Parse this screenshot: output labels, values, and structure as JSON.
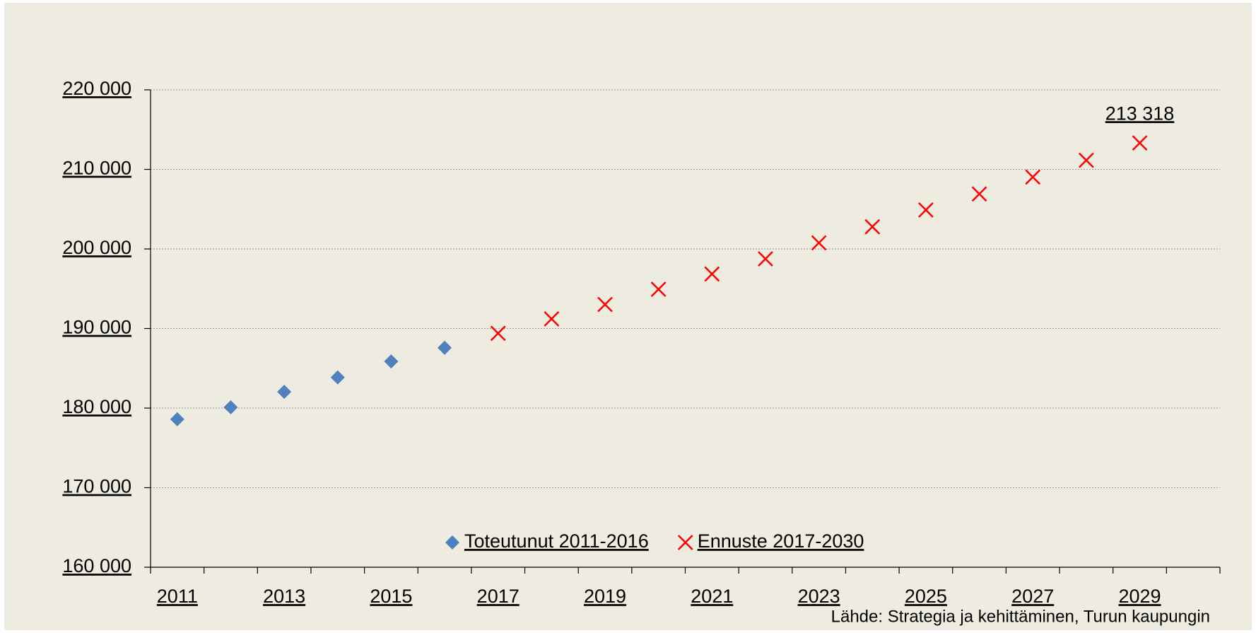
{
  "chart_data": {
    "type": "scatter",
    "categories": [
      "2011",
      null,
      "2013",
      null,
      "2015",
      null,
      "2017",
      null,
      "2019",
      null,
      "2021",
      null,
      "2023",
      null,
      "2025",
      null,
      "2027",
      null,
      "2029",
      null
    ],
    "series": [
      {
        "name": "Toteutunut 2011-2016",
        "color": "#4f81bd",
        "marker": "diamond",
        "values": [
          178600,
          180100,
          182050,
          183860,
          185870,
          187580,
          null,
          null,
          null,
          null,
          null,
          null,
          null,
          null,
          null,
          null,
          null,
          null,
          null,
          null
        ]
      },
      {
        "name": "Ennuste 2017-2030",
        "color": "#ff0000",
        "marker": "x",
        "values": [
          null,
          null,
          null,
          null,
          null,
          null,
          189400,
          191210,
          193020,
          194930,
          196850,
          198760,
          200770,
          202790,
          204900,
          206910,
          209030,
          211140,
          213318,
          null
        ],
        "value_labels": [
          null,
          null,
          null,
          null,
          null,
          null,
          null,
          null,
          null,
          null,
          null,
          null,
          null,
          null,
          null,
          null,
          null,
          null,
          "213 318",
          null
        ]
      }
    ],
    "ylim": [
      160000,
      220000
    ],
    "yticks": [
      {
        "value": 160000,
        "label": "160 000"
      },
      {
        "value": 170000,
        "label": "170 000"
      },
      {
        "value": 180000,
        "label": "180 000"
      },
      {
        "value": 190000,
        "label": "190 000"
      },
      {
        "value": 200000,
        "label": "200 000"
      },
      {
        "value": 210000,
        "label": "210 000"
      },
      {
        "value": 220000,
        "label": "220 000"
      }
    ],
    "grid": true,
    "legend": "bottom",
    "source": "Lähde: Strategia ja kehittäminen, Turun kaupungin"
  }
}
